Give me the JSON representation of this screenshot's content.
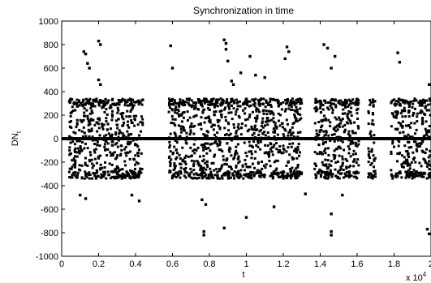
{
  "chart_data": {
    "type": "scatter",
    "title": "Synchronization in time",
    "xlabel": "t",
    "ylabel": "DN",
    "ylabel_subscript": "t",
    "x_multiplier": "x 10",
    "x_multiplier_exponent": "4",
    "xlim": [
      0,
      2
    ],
    "ylim": [
      -1000,
      1000
    ],
    "xticks": [
      "0",
      "0.2",
      "0.4",
      "0.6",
      "0.8",
      "1",
      "1.2",
      "1.4",
      "1.6",
      "1.8",
      "2"
    ],
    "yticks": [
      "1000",
      "800",
      "600",
      "400",
      "200",
      "0",
      "-200",
      "-400",
      "-600",
      "-800",
      "-1000"
    ],
    "grid": false,
    "marker_color": "#000000",
    "burst_intervals": [
      [
        0.04,
        0.44
      ],
      [
        0.58,
        1.3
      ],
      [
        1.37,
        1.61
      ],
      [
        1.66,
        1.7
      ],
      [
        1.78,
        2.0
      ]
    ],
    "burst_amplitude": 340,
    "outliers": [
      {
        "x": 0.12,
        "y": 740
      },
      {
        "x": 0.13,
        "y": 720
      },
      {
        "x": 0.14,
        "y": 640
      },
      {
        "x": 0.15,
        "y": 600
      },
      {
        "x": 0.2,
        "y": 830
      },
      {
        "x": 0.21,
        "y": 800
      },
      {
        "x": 0.2,
        "y": 500
      },
      {
        "x": 0.21,
        "y": 460
      },
      {
        "x": 0.59,
        "y": 790
      },
      {
        "x": 0.6,
        "y": 600
      },
      {
        "x": 0.88,
        "y": 840
      },
      {
        "x": 0.89,
        "y": 810
      },
      {
        "x": 0.89,
        "y": 760
      },
      {
        "x": 0.9,
        "y": 660
      },
      {
        "x": 0.92,
        "y": 490
      },
      {
        "x": 0.93,
        "y": 460
      },
      {
        "x": 0.97,
        "y": 560
      },
      {
        "x": 1.02,
        "y": 700
      },
      {
        "x": 1.05,
        "y": 540
      },
      {
        "x": 1.1,
        "y": 520
      },
      {
        "x": 1.22,
        "y": 780
      },
      {
        "x": 1.23,
        "y": 740
      },
      {
        "x": 1.21,
        "y": 680
      },
      {
        "x": 1.42,
        "y": 800
      },
      {
        "x": 1.44,
        "y": 770
      },
      {
        "x": 1.48,
        "y": 700
      },
      {
        "x": 1.46,
        "y": 600
      },
      {
        "x": 1.82,
        "y": 730
      },
      {
        "x": 1.83,
        "y": 650
      },
      {
        "x": 1.99,
        "y": 460
      },
      {
        "x": 0.1,
        "y": -480
      },
      {
        "x": 0.13,
        "y": -510
      },
      {
        "x": 0.42,
        "y": -530
      },
      {
        "x": 0.76,
        "y": -520
      },
      {
        "x": 0.78,
        "y": -560
      },
      {
        "x": 0.77,
        "y": -790
      },
      {
        "x": 0.77,
        "y": -820
      },
      {
        "x": 0.88,
        "y": -760
      },
      {
        "x": 1.0,
        "y": -670
      },
      {
        "x": 1.15,
        "y": -580
      },
      {
        "x": 1.32,
        "y": -470
      },
      {
        "x": 1.46,
        "y": -640
      },
      {
        "x": 1.46,
        "y": -790
      },
      {
        "x": 1.46,
        "y": -820
      },
      {
        "x": 1.52,
        "y": -480
      },
      {
        "x": 1.98,
        "y": -770
      },
      {
        "x": 1.99,
        "y": -810
      },
      {
        "x": 0.38,
        "y": -480
      }
    ]
  }
}
